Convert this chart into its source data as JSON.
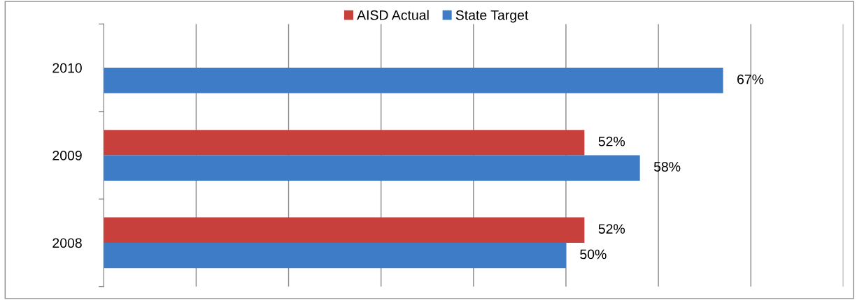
{
  "chart_data": {
    "type": "bar",
    "orientation": "horizontal",
    "categories": [
      "2010",
      "2009",
      "2008"
    ],
    "series": [
      {
        "name": "AISD Actual",
        "color": "#c8403b",
        "values": [
          null,
          52,
          52
        ],
        "value_labels": [
          null,
          "52%",
          "52%"
        ]
      },
      {
        "name": "State Target",
        "color": "#3f7cc8",
        "values": [
          67,
          58,
          50
        ],
        "value_labels": [
          "67%",
          "58%",
          "50%"
        ]
      }
    ],
    "xlim": [
      0,
      80
    ],
    "xticks": [
      {
        "value": 0,
        "label": null
      },
      {
        "value": 10,
        "label": null
      },
      {
        "value": 20,
        "label": null
      },
      {
        "value": 30,
        "label": null
      },
      {
        "value": 40,
        "label": null
      },
      {
        "value": 50,
        "label": null
      },
      {
        "value": 60,
        "label": null
      },
      {
        "value": 70,
        "label": null
      },
      {
        "value": 80,
        "label": null
      }
    ],
    "tick_labels": "y",
    "grid": "x",
    "legend": "top"
  }
}
